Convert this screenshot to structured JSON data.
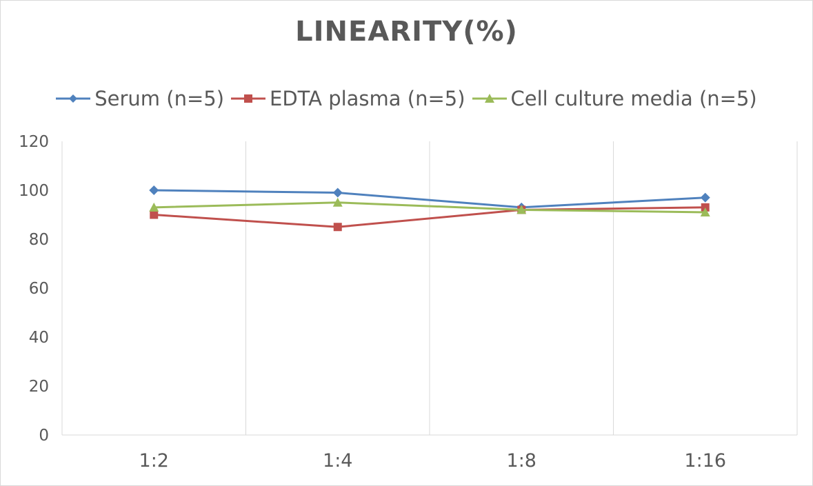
{
  "chart_data": {
    "type": "line",
    "title": "LINEARITY(%)",
    "categories": [
      "1:2",
      "1:4",
      "1:8",
      "1:16"
    ],
    "series": [
      {
        "name": "Serum (n=5)",
        "values": [
          100,
          99,
          93,
          97
        ],
        "color": "#4f81bd",
        "marker": "diamond"
      },
      {
        "name": "EDTA plasma (n=5)",
        "values": [
          90,
          85,
          92,
          93
        ],
        "color": "#c0504d",
        "marker": "square"
      },
      {
        "name": "Cell culture media (n=5)",
        "values": [
          93,
          95,
          92,
          91
        ],
        "color": "#9bbb59",
        "marker": "triangle"
      }
    ],
    "ylim": [
      0,
      120
    ],
    "yticks": [
      0,
      20,
      40,
      60,
      80,
      100,
      120
    ],
    "legend_position": "top",
    "grid": "vertical"
  }
}
